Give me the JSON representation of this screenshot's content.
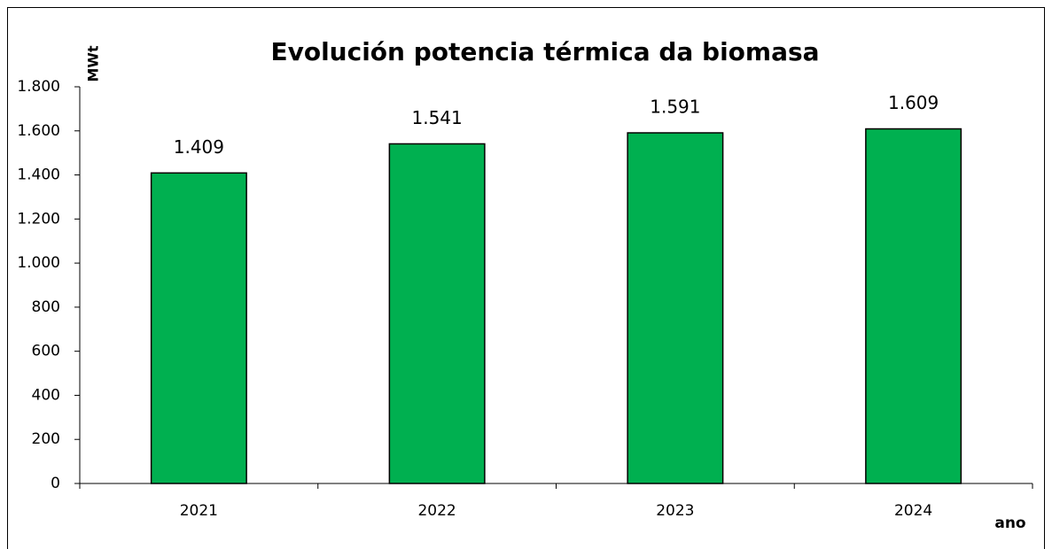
{
  "chart_data": {
    "type": "bar",
    "title": "Evolución potencia térmica da biomasa",
    "y_label": "MWt",
    "x_label": "ano",
    "categories": [
      "2021",
      "2022",
      "2023",
      "2024"
    ],
    "values": [
      1409,
      1541,
      1591,
      1609
    ],
    "value_labels": [
      "1.409",
      "1.541",
      "1.591",
      "1.609"
    ],
    "color": "#00b050",
    "ylim": [
      0,
      1800
    ],
    "yticks": [
      0,
      200,
      400,
      600,
      800,
      {
        "value": 1000,
        "label": "1.000"
      },
      {
        "value": 1200,
        "label": "1.200"
      },
      {
        "value": 1400,
        "label": "1.400"
      },
      {
        "value": 1600,
        "label": "1.600"
      },
      {
        "value": 1800,
        "label": "1.800"
      }
    ],
    "grid": false
  }
}
